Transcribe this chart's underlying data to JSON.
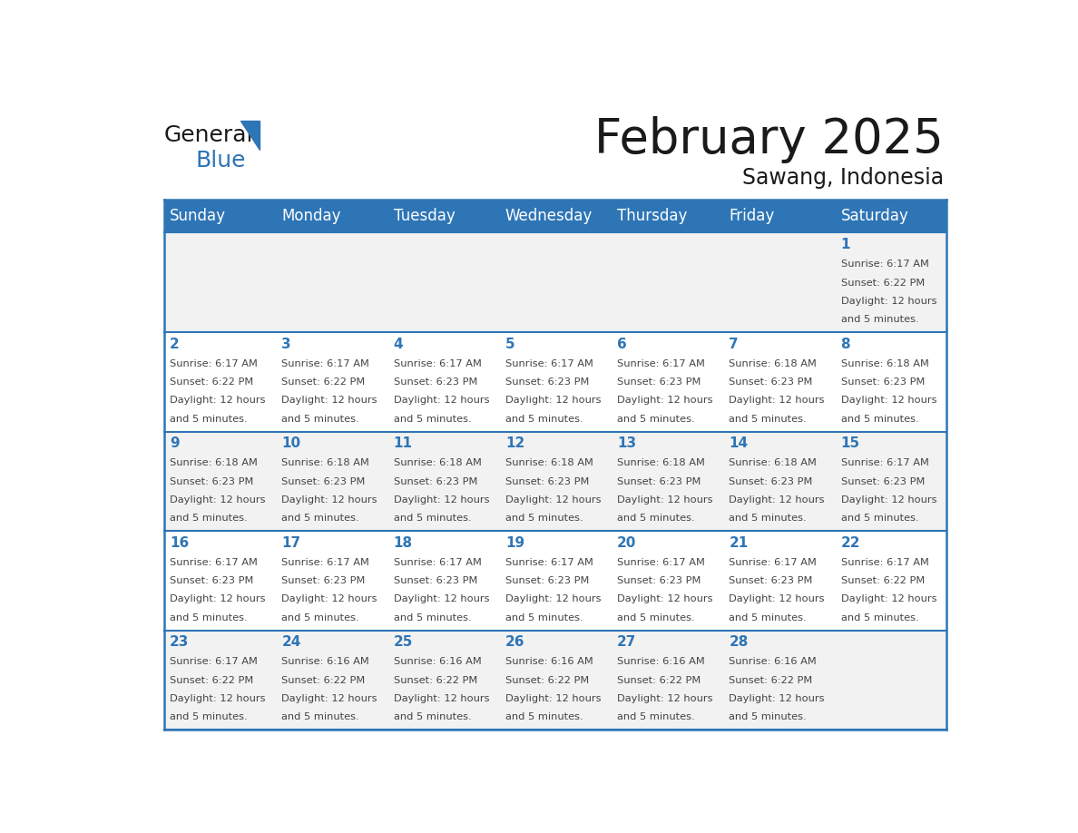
{
  "title": "February 2025",
  "subtitle": "Sawang, Indonesia",
  "header_bg": "#2E75B6",
  "header_text_color": "#FFFFFF",
  "cell_bg_odd": "#F2F2F2",
  "cell_bg_even": "#FFFFFF",
  "border_color": "#2E75B6",
  "text_color": "#444444",
  "day_headers": [
    "Sunday",
    "Monday",
    "Tuesday",
    "Wednesday",
    "Thursday",
    "Friday",
    "Saturday"
  ],
  "days": [
    {
      "day": 1,
      "col": 6,
      "row": 0,
      "sunrise": "6:17 AM",
      "sunset": "6:22 PM",
      "daylight_line1": "Daylight: 12 hours",
      "daylight_line2": "and 5 minutes."
    },
    {
      "day": 2,
      "col": 0,
      "row": 1,
      "sunrise": "6:17 AM",
      "sunset": "6:22 PM",
      "daylight_line1": "Daylight: 12 hours",
      "daylight_line2": "and 5 minutes."
    },
    {
      "day": 3,
      "col": 1,
      "row": 1,
      "sunrise": "6:17 AM",
      "sunset": "6:22 PM",
      "daylight_line1": "Daylight: 12 hours",
      "daylight_line2": "and 5 minutes."
    },
    {
      "day": 4,
      "col": 2,
      "row": 1,
      "sunrise": "6:17 AM",
      "sunset": "6:23 PM",
      "daylight_line1": "Daylight: 12 hours",
      "daylight_line2": "and 5 minutes."
    },
    {
      "day": 5,
      "col": 3,
      "row": 1,
      "sunrise": "6:17 AM",
      "sunset": "6:23 PM",
      "daylight_line1": "Daylight: 12 hours",
      "daylight_line2": "and 5 minutes."
    },
    {
      "day": 6,
      "col": 4,
      "row": 1,
      "sunrise": "6:17 AM",
      "sunset": "6:23 PM",
      "daylight_line1": "Daylight: 12 hours",
      "daylight_line2": "and 5 minutes."
    },
    {
      "day": 7,
      "col": 5,
      "row": 1,
      "sunrise": "6:18 AM",
      "sunset": "6:23 PM",
      "daylight_line1": "Daylight: 12 hours",
      "daylight_line2": "and 5 minutes."
    },
    {
      "day": 8,
      "col": 6,
      "row": 1,
      "sunrise": "6:18 AM",
      "sunset": "6:23 PM",
      "daylight_line1": "Daylight: 12 hours",
      "daylight_line2": "and 5 minutes."
    },
    {
      "day": 9,
      "col": 0,
      "row": 2,
      "sunrise": "6:18 AM",
      "sunset": "6:23 PM",
      "daylight_line1": "Daylight: 12 hours",
      "daylight_line2": "and 5 minutes."
    },
    {
      "day": 10,
      "col": 1,
      "row": 2,
      "sunrise": "6:18 AM",
      "sunset": "6:23 PM",
      "daylight_line1": "Daylight: 12 hours",
      "daylight_line2": "and 5 minutes."
    },
    {
      "day": 11,
      "col": 2,
      "row": 2,
      "sunrise": "6:18 AM",
      "sunset": "6:23 PM",
      "daylight_line1": "Daylight: 12 hours",
      "daylight_line2": "and 5 minutes."
    },
    {
      "day": 12,
      "col": 3,
      "row": 2,
      "sunrise": "6:18 AM",
      "sunset": "6:23 PM",
      "daylight_line1": "Daylight: 12 hours",
      "daylight_line2": "and 5 minutes."
    },
    {
      "day": 13,
      "col": 4,
      "row": 2,
      "sunrise": "6:18 AM",
      "sunset": "6:23 PM",
      "daylight_line1": "Daylight: 12 hours",
      "daylight_line2": "and 5 minutes."
    },
    {
      "day": 14,
      "col": 5,
      "row": 2,
      "sunrise": "6:18 AM",
      "sunset": "6:23 PM",
      "daylight_line1": "Daylight: 12 hours",
      "daylight_line2": "and 5 minutes."
    },
    {
      "day": 15,
      "col": 6,
      "row": 2,
      "sunrise": "6:17 AM",
      "sunset": "6:23 PM",
      "daylight_line1": "Daylight: 12 hours",
      "daylight_line2": "and 5 minutes."
    },
    {
      "day": 16,
      "col": 0,
      "row": 3,
      "sunrise": "6:17 AM",
      "sunset": "6:23 PM",
      "daylight_line1": "Daylight: 12 hours",
      "daylight_line2": "and 5 minutes."
    },
    {
      "day": 17,
      "col": 1,
      "row": 3,
      "sunrise": "6:17 AM",
      "sunset": "6:23 PM",
      "daylight_line1": "Daylight: 12 hours",
      "daylight_line2": "and 5 minutes."
    },
    {
      "day": 18,
      "col": 2,
      "row": 3,
      "sunrise": "6:17 AM",
      "sunset": "6:23 PM",
      "daylight_line1": "Daylight: 12 hours",
      "daylight_line2": "and 5 minutes."
    },
    {
      "day": 19,
      "col": 3,
      "row": 3,
      "sunrise": "6:17 AM",
      "sunset": "6:23 PM",
      "daylight_line1": "Daylight: 12 hours",
      "daylight_line2": "and 5 minutes."
    },
    {
      "day": 20,
      "col": 4,
      "row": 3,
      "sunrise": "6:17 AM",
      "sunset": "6:23 PM",
      "daylight_line1": "Daylight: 12 hours",
      "daylight_line2": "and 5 minutes."
    },
    {
      "day": 21,
      "col": 5,
      "row": 3,
      "sunrise": "6:17 AM",
      "sunset": "6:23 PM",
      "daylight_line1": "Daylight: 12 hours",
      "daylight_line2": "and 5 minutes."
    },
    {
      "day": 22,
      "col": 6,
      "row": 3,
      "sunrise": "6:17 AM",
      "sunset": "6:22 PM",
      "daylight_line1": "Daylight: 12 hours",
      "daylight_line2": "and 5 minutes."
    },
    {
      "day": 23,
      "col": 0,
      "row": 4,
      "sunrise": "6:17 AM",
      "sunset": "6:22 PM",
      "daylight_line1": "Daylight: 12 hours",
      "daylight_line2": "and 5 minutes."
    },
    {
      "day": 24,
      "col": 1,
      "row": 4,
      "sunrise": "6:16 AM",
      "sunset": "6:22 PM",
      "daylight_line1": "Daylight: 12 hours",
      "daylight_line2": "and 5 minutes."
    },
    {
      "day": 25,
      "col": 2,
      "row": 4,
      "sunrise": "6:16 AM",
      "sunset": "6:22 PM",
      "daylight_line1": "Daylight: 12 hours",
      "daylight_line2": "and 5 minutes."
    },
    {
      "day": 26,
      "col": 3,
      "row": 4,
      "sunrise": "6:16 AM",
      "sunset": "6:22 PM",
      "daylight_line1": "Daylight: 12 hours",
      "daylight_line2": "and 5 minutes."
    },
    {
      "day": 27,
      "col": 4,
      "row": 4,
      "sunrise": "6:16 AM",
      "sunset": "6:22 PM",
      "daylight_line1": "Daylight: 12 hours",
      "daylight_line2": "and 5 minutes."
    },
    {
      "day": 28,
      "col": 5,
      "row": 4,
      "sunrise": "6:16 AM",
      "sunset": "6:22 PM",
      "daylight_line1": "Daylight: 12 hours",
      "daylight_line2": "and 5 minutes."
    }
  ],
  "num_rows": 5,
  "num_cols": 7,
  "logo_general_color": "#1a1a1a",
  "logo_blue_color": "#2E75B6",
  "title_fontsize": 38,
  "subtitle_fontsize": 17,
  "header_fontsize": 12,
  "day_num_fontsize": 11,
  "cell_text_fontsize": 8.2
}
